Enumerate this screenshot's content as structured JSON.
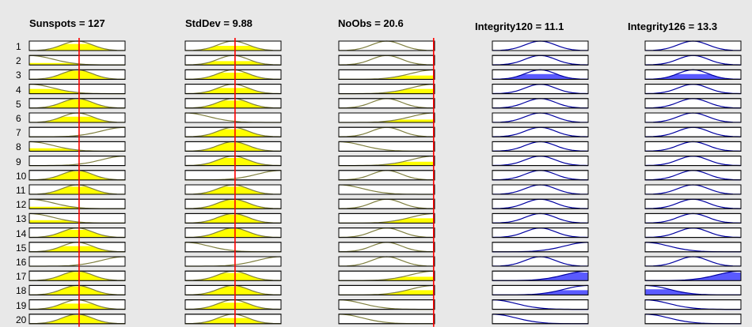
{
  "colors": {
    "input_fill": "#ffff00",
    "input_curve": "#7f7f3f",
    "output_fill": "#5a5aff",
    "output_curve": "#0000a0",
    "rule_line": "#ff0000",
    "background": "#e8e8e8"
  },
  "columns": [
    {
      "title": "Sunspots = 127",
      "kind": "input",
      "line_fraction": 0.52
    },
    {
      "title": "StdDev = 9.88",
      "kind": "input",
      "line_fraction": 0.52
    },
    {
      "title": "NoObs = 20.6",
      "kind": "input",
      "line_fraction": 0.99
    },
    {
      "title": "Integrity120 = 11.1",
      "kind": "output"
    },
    {
      "title": "Integrity126 = 13.3",
      "kind": "output"
    }
  ],
  "rows": [
    "1",
    "2",
    "3",
    "4",
    "5",
    "6",
    "7",
    "8",
    "9",
    "10",
    "11",
    "12",
    "13",
    "14",
    "15",
    "16",
    "17",
    "18",
    "19",
    "20"
  ],
  "cells": [
    [
      [
        "mid",
        0.7
      ],
      [
        "low",
        0.2
      ],
      [
        "mid",
        0.9
      ],
      [
        "low",
        0.5
      ],
      [
        "mid",
        0.9
      ],
      [
        "mid",
        0.6
      ],
      [
        "high",
        0.0
      ],
      [
        "low",
        0.3
      ],
      [
        "high",
        0.0
      ],
      [
        "mid",
        0.9
      ],
      [
        "mid",
        0.8
      ],
      [
        "low",
        0.2
      ],
      [
        "low",
        0.3
      ],
      [
        "mid",
        0.8
      ],
      [
        "mid",
        0.6
      ],
      [
        "high",
        0.0
      ],
      [
        "mid",
        0.9
      ],
      [
        "mid",
        0.9
      ],
      [
        "mid",
        0.6
      ],
      [
        "mid",
        0.9
      ]
    ],
    [
      [
        "mid",
        0.5
      ],
      [
        "mid",
        0.4
      ],
      [
        "mid",
        0.7
      ],
      [
        "mid",
        0.6
      ],
      [
        "mid",
        0.8
      ],
      [
        "low",
        0.0
      ],
      [
        "mid",
        0.8
      ],
      [
        "mid",
        0.9
      ],
      [
        "mid",
        0.8
      ],
      [
        "high",
        0.0
      ],
      [
        "mid",
        0.8
      ],
      [
        "mid",
        0.9
      ],
      [
        "mid",
        0.9
      ],
      [
        "mid",
        0.9
      ],
      [
        "low",
        0.0
      ],
      [
        "high",
        0.0
      ],
      [
        "mid",
        0.8
      ],
      [
        "mid",
        0.9
      ],
      [
        "mid",
        0.7
      ],
      [
        "mid",
        0.6
      ]
    ],
    [
      [
        "mid",
        0.0
      ],
      [
        "mid",
        0.0
      ],
      [
        "high",
        0.4
      ],
      [
        "high",
        0.5
      ],
      [
        "mid",
        0.0
      ],
      [
        "high",
        0.3
      ],
      [
        "mid",
        0.0
      ],
      [
        "low",
        0.0
      ],
      [
        "high",
        0.4
      ],
      [
        "mid",
        0.0
      ],
      [
        "low",
        0.0
      ],
      [
        "mid",
        0.0
      ],
      [
        "high",
        0.5
      ],
      [
        "mid",
        0.0
      ],
      [
        "mid",
        0.0
      ],
      [
        "mid",
        0.0
      ],
      [
        "high",
        0.4
      ],
      [
        "high",
        0.5
      ],
      [
        "low",
        0.0
      ],
      [
        "low",
        0.0
      ]
    ],
    [
      [
        "mid",
        0.0
      ],
      [
        "mid",
        0.0
      ],
      [
        "mid",
        0.55
      ],
      [
        "mid",
        0.0
      ],
      [
        "mid",
        0.0
      ],
      [
        "mid",
        0.0
      ],
      [
        "mid",
        0.0
      ],
      [
        "mid",
        0.0
      ],
      [
        "mid",
        0.0
      ],
      [
        "mid",
        0.0
      ],
      [
        "mid",
        0.0
      ],
      [
        "mid",
        0.0
      ],
      [
        "mid",
        0.0
      ],
      [
        "mid",
        0.0
      ],
      [
        "high",
        0.0
      ],
      [
        "mid",
        0.0
      ],
      [
        "high",
        0.85
      ],
      [
        "high",
        0.5
      ],
      [
        "low",
        0.0
      ],
      [
        "low",
        0.0
      ]
    ],
    [
      [
        "mid",
        0.0
      ],
      [
        "mid",
        0.0
      ],
      [
        "mid",
        0.55
      ],
      [
        "mid",
        0.0
      ],
      [
        "mid",
        0.0
      ],
      [
        "mid",
        0.0
      ],
      [
        "mid",
        0.0
      ],
      [
        "mid",
        0.0
      ],
      [
        "mid",
        0.0
      ],
      [
        "mid",
        0.0
      ],
      [
        "mid",
        0.0
      ],
      [
        "mid",
        0.0
      ],
      [
        "mid",
        0.0
      ],
      [
        "mid",
        0.0
      ],
      [
        "low",
        0.0
      ],
      [
        "mid",
        0.0
      ],
      [
        "high",
        0.85
      ],
      [
        "low",
        0.6
      ],
      [
        "low",
        0.0
      ],
      [
        "low",
        0.0
      ]
    ]
  ]
}
